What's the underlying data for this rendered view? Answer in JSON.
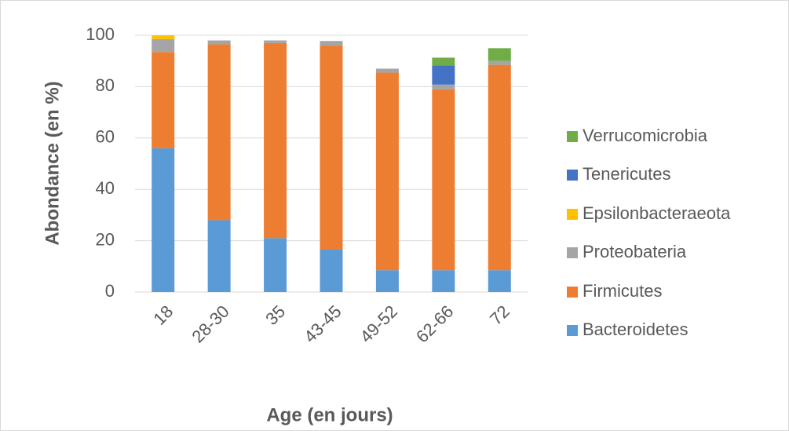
{
  "chart_data": {
    "type": "stacked_bar",
    "x_label": "Age (en jours)",
    "y_label": "Abondance (en %)",
    "categories": [
      "18",
      "28-30",
      "35",
      "43-45",
      "49-52",
      "62-66",
      "72"
    ],
    "series": [
      {
        "name": "Bacteroidetes",
        "color": "#5b9bd5",
        "values": [
          56,
          28,
          21,
          16.5,
          8.5,
          8.5,
          8.5
        ]
      },
      {
        "name": "Firmicutes",
        "color": "#ed7d31",
        "values": [
          37.5,
          68.5,
          76,
          79.5,
          77,
          70.5,
          80
        ]
      },
      {
        "name": "Proteobateria",
        "color": "#a5a5a5",
        "values": [
          5,
          1.5,
          1,
          1.8,
          1.5,
          1.8,
          1.5
        ]
      },
      {
        "name": "Epsilonbacteraeota",
        "color": "#ffc000",
        "values": [
          1.5,
          0,
          0,
          0,
          0,
          0,
          0
        ]
      },
      {
        "name": "Tenericutes",
        "color": "#4472c4",
        "values": [
          0,
          0,
          0,
          0,
          0,
          7.5,
          0
        ]
      },
      {
        "name": "Verrucomicrobia",
        "color": "#70ad47",
        "values": [
          0,
          0,
          0,
          0,
          0,
          3,
          5
        ]
      }
    ],
    "ylim": [
      0,
      100
    ],
    "yticks": [
      0,
      20,
      40,
      60,
      80,
      100
    ],
    "grid": true,
    "legend": "right"
  }
}
